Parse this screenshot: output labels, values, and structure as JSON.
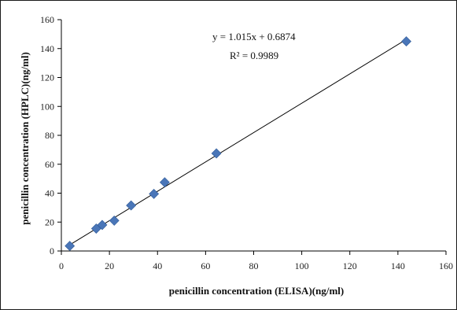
{
  "chart_data": {
    "type": "scatter",
    "title": "",
    "xlabel": "penicillin concentration (ELISA)(ng/ml)",
    "ylabel": "penicillin concentration (HPLC)(ng/ml)",
    "xlim": [
      0,
      160
    ],
    "ylim": [
      0,
      160
    ],
    "xticks": [
      0,
      20,
      40,
      60,
      80,
      100,
      120,
      140,
      160
    ],
    "yticks": [
      0,
      20,
      40,
      60,
      80,
      100,
      120,
      140,
      160
    ],
    "grid": false,
    "marker_color": "#4a76b8",
    "line_color": "#000000",
    "points": [
      {
        "x": 3.5,
        "y": 3.5
      },
      {
        "x": 14.5,
        "y": 15.5
      },
      {
        "x": 17,
        "y": 18
      },
      {
        "x": 22,
        "y": 21
      },
      {
        "x": 29,
        "y": 31.5
      },
      {
        "x": 38.5,
        "y": 39.5
      },
      {
        "x": 43,
        "y": 47.5
      },
      {
        "x": 64.5,
        "y": 67.5
      },
      {
        "x": 143.5,
        "y": 145
      }
    ],
    "trendline": {
      "slope": 1.015,
      "intercept": 0.6874,
      "x_range": [
        3.5,
        143.5
      ]
    },
    "annotations": {
      "equation": "y = 1.015x  + 0.6874",
      "r_squared": "R² = 0.9989"
    }
  }
}
